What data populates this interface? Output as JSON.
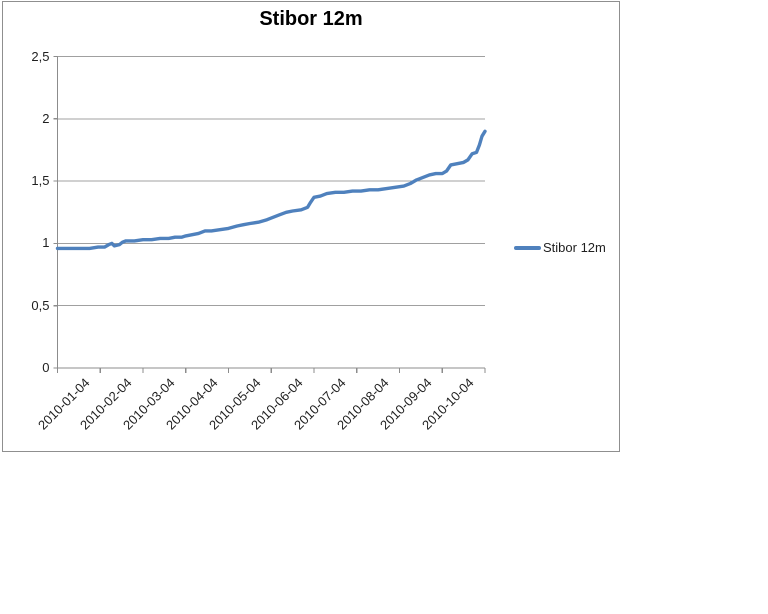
{
  "chart_data": {
    "type": "line",
    "title": "Stibor 12m",
    "xlabel": "",
    "ylabel": "",
    "grid": "horizontal",
    "legend_position": "right",
    "x_axis": {
      "tick_labels": [
        "2010-01-04",
        "2010-02-04",
        "2010-03-04",
        "2010-04-04",
        "2010-05-04",
        "2010-06-04",
        "2010-07-04",
        "2010-08-04",
        "2010-09-04",
        "2010-10-04"
      ],
      "range_months": [
        0,
        10
      ],
      "boundary_tick_count": 11,
      "label_rotation_deg": -45
    },
    "y_axis": {
      "tick_labels": [
        "2,5",
        "2",
        "1,5",
        "1",
        "0,5",
        "0"
      ],
      "ylim": [
        0,
        2.5
      ],
      "tick_step": 0.5,
      "decimal_separator": ","
    },
    "series": [
      {
        "name": "Stibor 12m",
        "color": "#4F81BD",
        "points_unit": "x = months after 2010-01-04, y = rate",
        "points": [
          [
            0.0,
            0.96
          ],
          [
            0.25,
            0.96
          ],
          [
            0.5,
            0.96
          ],
          [
            0.75,
            0.96
          ],
          [
            0.95,
            0.97
          ],
          [
            1.1,
            0.97
          ],
          [
            1.2,
            0.99
          ],
          [
            1.27,
            1.0
          ],
          [
            1.33,
            0.98
          ],
          [
            1.45,
            0.99
          ],
          [
            1.52,
            1.01
          ],
          [
            1.6,
            1.02
          ],
          [
            1.8,
            1.02
          ],
          [
            2.0,
            1.03
          ],
          [
            2.2,
            1.03
          ],
          [
            2.4,
            1.04
          ],
          [
            2.6,
            1.04
          ],
          [
            2.75,
            1.05
          ],
          [
            2.9,
            1.05
          ],
          [
            3.0,
            1.06
          ],
          [
            3.15,
            1.07
          ],
          [
            3.3,
            1.08
          ],
          [
            3.45,
            1.1
          ],
          [
            3.6,
            1.1
          ],
          [
            3.8,
            1.11
          ],
          [
            4.0,
            1.12
          ],
          [
            4.2,
            1.14
          ],
          [
            4.35,
            1.15
          ],
          [
            4.5,
            1.16
          ],
          [
            4.7,
            1.17
          ],
          [
            4.9,
            1.19
          ],
          [
            5.05,
            1.21
          ],
          [
            5.2,
            1.23
          ],
          [
            5.35,
            1.25
          ],
          [
            5.5,
            1.26
          ],
          [
            5.7,
            1.27
          ],
          [
            5.85,
            1.29
          ],
          [
            5.92,
            1.33
          ],
          [
            6.0,
            1.37
          ],
          [
            6.15,
            1.38
          ],
          [
            6.3,
            1.4
          ],
          [
            6.5,
            1.41
          ],
          [
            6.7,
            1.41
          ],
          [
            6.9,
            1.42
          ],
          [
            7.1,
            1.42
          ],
          [
            7.3,
            1.43
          ],
          [
            7.5,
            1.43
          ],
          [
            7.7,
            1.44
          ],
          [
            7.9,
            1.45
          ],
          [
            8.1,
            1.46
          ],
          [
            8.25,
            1.48
          ],
          [
            8.4,
            1.51
          ],
          [
            8.55,
            1.53
          ],
          [
            8.7,
            1.55
          ],
          [
            8.85,
            1.56
          ],
          [
            9.0,
            1.56
          ],
          [
            9.1,
            1.58
          ],
          [
            9.2,
            1.63
          ],
          [
            9.35,
            1.64
          ],
          [
            9.5,
            1.65
          ],
          [
            9.6,
            1.67
          ],
          [
            9.7,
            1.72
          ],
          [
            9.8,
            1.73
          ],
          [
            9.87,
            1.79
          ],
          [
            9.93,
            1.86
          ],
          [
            10.0,
            1.9
          ]
        ]
      }
    ]
  },
  "colors": {
    "series": "#4F81BD",
    "gridline": "#A0A0A0",
    "axis": "#8C8C8C",
    "frame_border": "#8F8F8F",
    "tick_text": "#1F1F1F",
    "title_text": "#000000"
  }
}
